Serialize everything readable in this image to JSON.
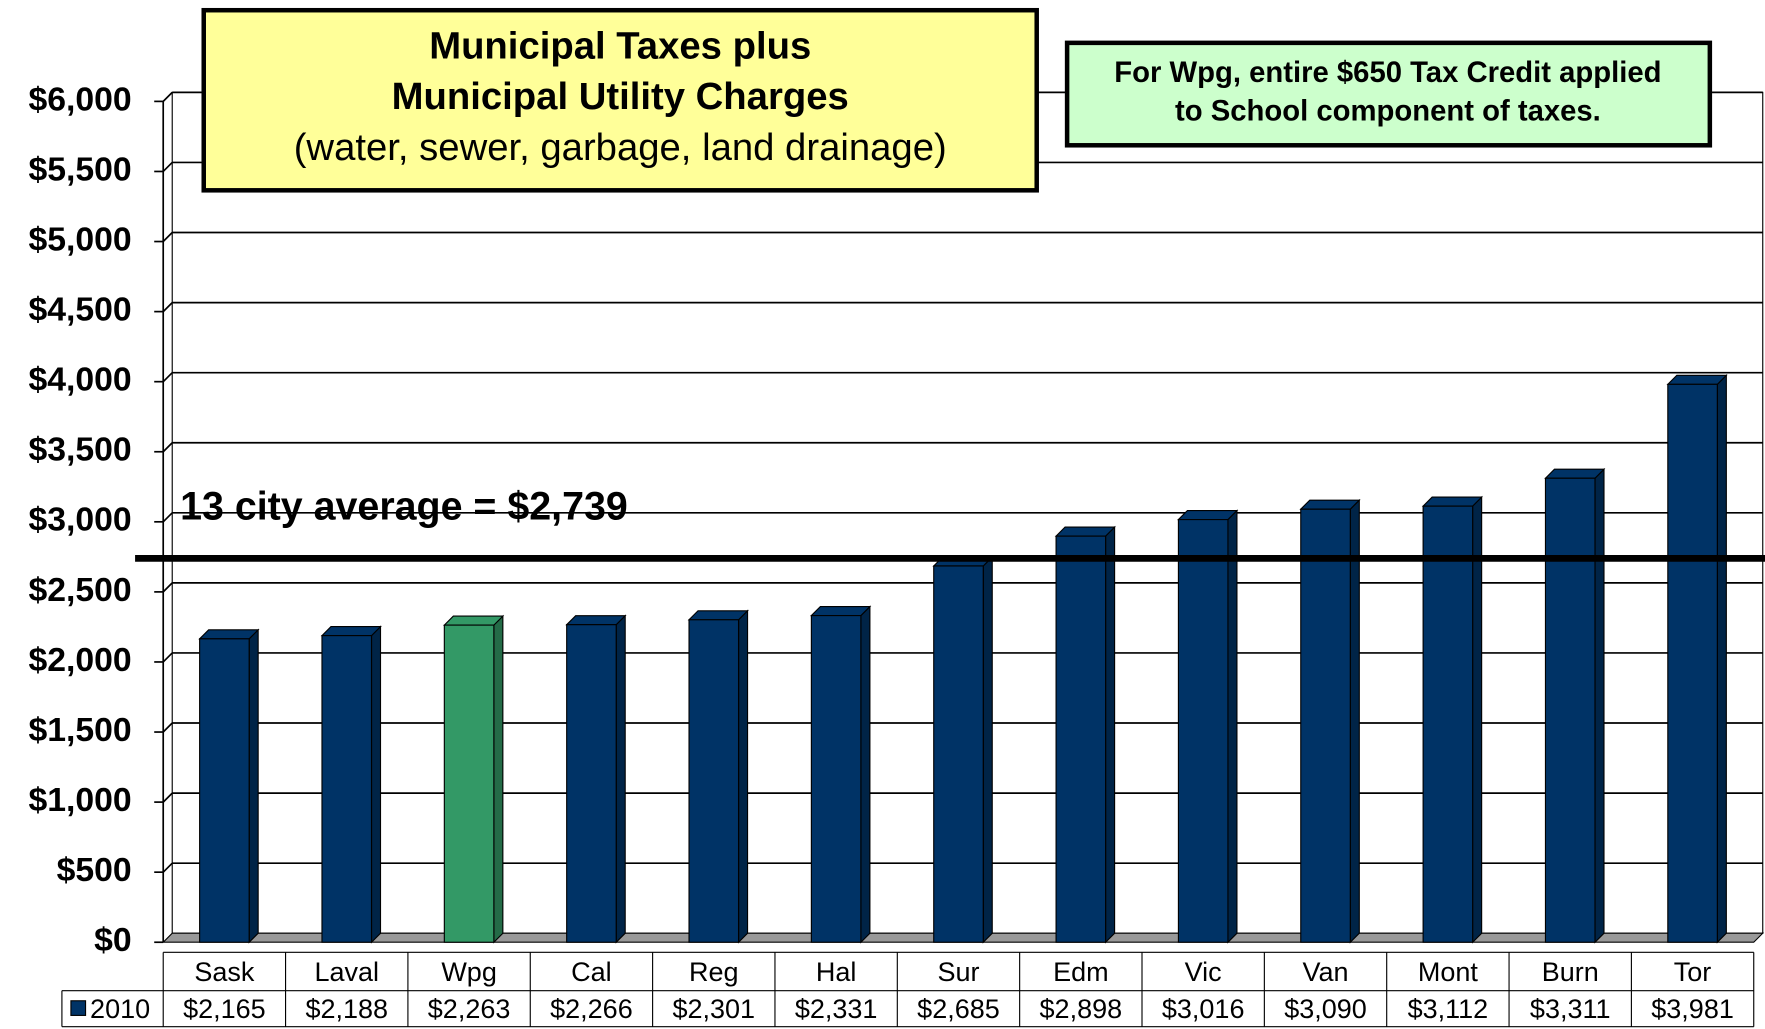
{
  "chart_data": {
    "type": "bar",
    "title": [
      "Municipal Taxes plus",
      "Municipal Utility Charges",
      "(water, sewer, garbage, land drainage)"
    ],
    "annotation": [
      "For Wpg, entire $650 Tax Credit applied",
      "to School component of taxes."
    ],
    "average": {
      "value": 2739,
      "label": "13 city average = $2,739"
    },
    "categories": [
      "Sask",
      "Laval",
      "Wpg",
      "Cal",
      "Reg",
      "Hal",
      "Sur",
      "Edm",
      "Vic",
      "Van",
      "Mont",
      "Burn",
      "Tor"
    ],
    "series": [
      {
        "name": "2010",
        "color": "#003366",
        "colors": [
          "#003366",
          "#003366",
          "#339966",
          "#003366",
          "#003366",
          "#003366",
          "#003366",
          "#003366",
          "#003366",
          "#003366",
          "#003366",
          "#003366",
          "#003366"
        ],
        "values": [
          2165,
          2188,
          2263,
          2266,
          2301,
          2331,
          2685,
          2898,
          3016,
          3090,
          3112,
          3311,
          3981
        ],
        "value_labels": [
          "$2,165",
          "$2,188",
          "$2,263",
          "$2,266",
          "$2,301",
          "$2,331",
          "$2,685",
          "$2,898",
          "$3,016",
          "$3,090",
          "$3,112",
          "$3,311",
          "$3,981"
        ]
      }
    ],
    "ylim": [
      0,
      6000
    ],
    "yticks": [
      {
        "value": 0,
        "label": "$0"
      },
      {
        "value": 500,
        "label": "$500"
      },
      {
        "value": 1000,
        "label": "$1,000"
      },
      {
        "value": 1500,
        "label": "$1,500"
      },
      {
        "value": 2000,
        "label": "$2,000"
      },
      {
        "value": 2500,
        "label": "$2,500"
      },
      {
        "value": 3000,
        "label": "$3,000"
      },
      {
        "value": 3500,
        "label": "$3,500"
      },
      {
        "value": 4000,
        "label": "$4,000"
      },
      {
        "value": 4500,
        "label": "$4,500"
      },
      {
        "value": 5000,
        "label": "$5,000"
      },
      {
        "value": 5500,
        "label": "$5,500"
      },
      {
        "value": 6000,
        "label": "$6,000"
      }
    ],
    "grid": true
  }
}
